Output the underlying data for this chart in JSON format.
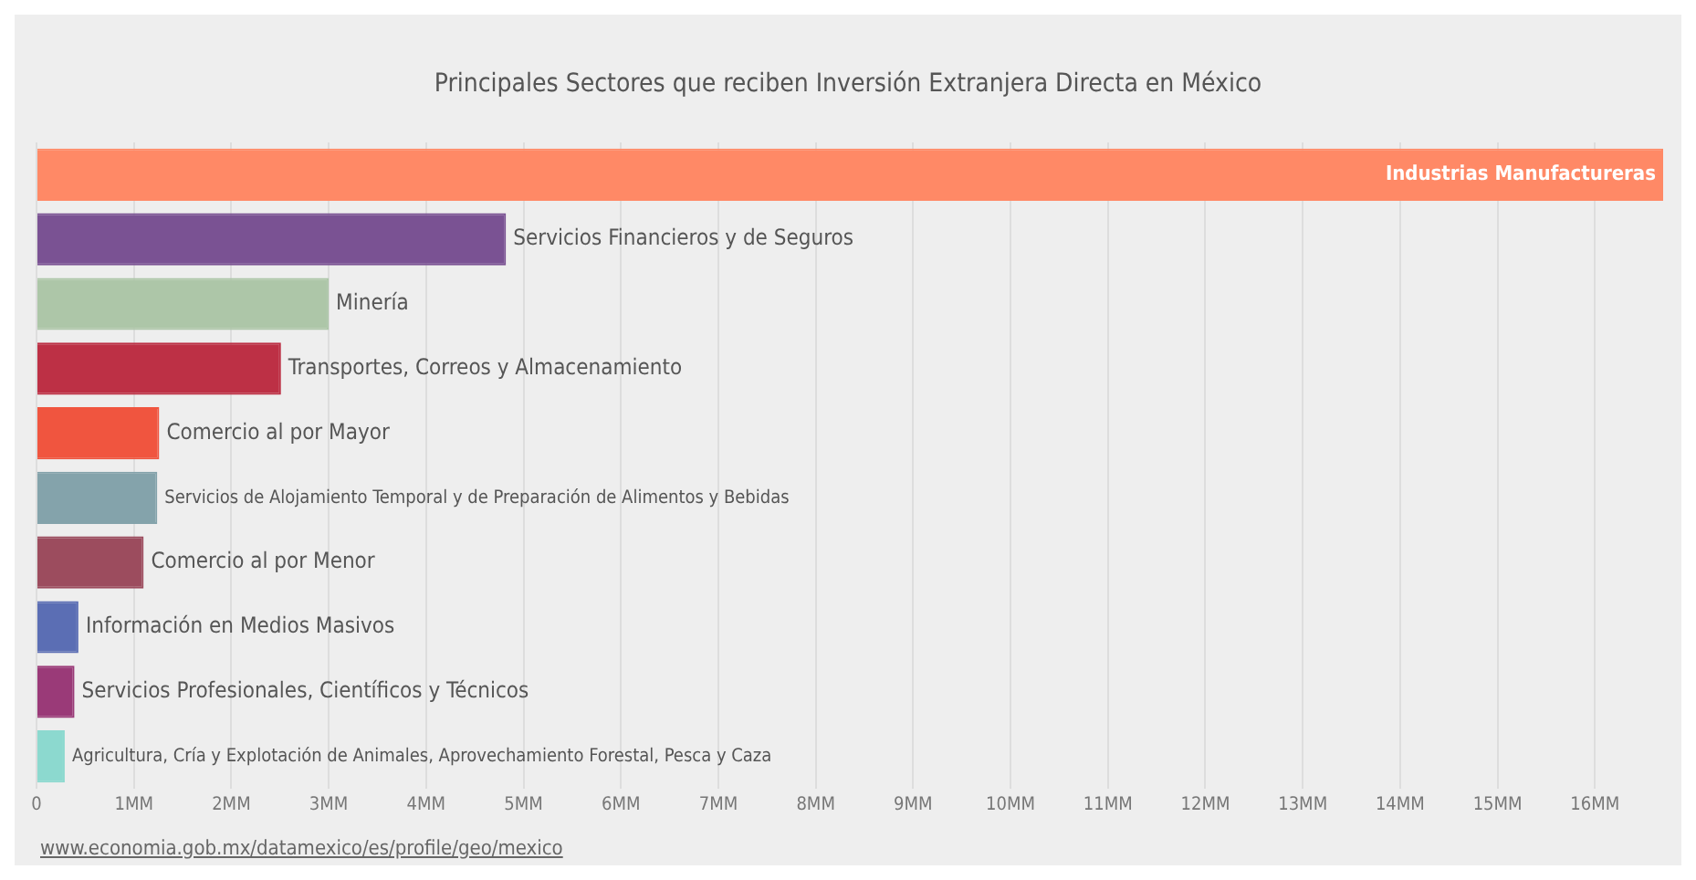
{
  "chart_data": {
    "type": "bar",
    "orientation": "horizontal",
    "title": "Principales Sectores que reciben Inversión Extranjera Directa en México",
    "categories": [
      "Industrias Manufactureras",
      "Servicios Financieros y de Seguros",
      "Minería",
      "Transportes, Correos y Almacenamiento",
      "Comercio al por Mayor",
      "Servicios de Alojamiento Temporal y de Preparación de Alimentos y Bebidas",
      "Comercio al por Menor",
      "Información en Medios Masivos",
      "Servicios Profesionales, Científicos y Técnicos",
      "Agricultura, Cría y Explotación de Animales, Aprovechamiento Forestal, Pesca y Caza"
    ],
    "values": [
      16.7,
      4.82,
      3.0,
      2.51,
      1.26,
      1.24,
      1.1,
      0.43,
      0.39,
      0.29
    ],
    "colors": [
      "#ff8966",
      "#7a5293",
      "#adc6a8",
      "#bd3045",
      "#f0553f",
      "#84a3ab",
      "#9c4c5e",
      "#5b6eb4",
      "#9a3a78",
      "#8cd9cf"
    ],
    "xlim": [
      0,
      16.7
    ],
    "xticks": [
      0,
      {
        "value": 1,
        "label": "1MM"
      },
      {
        "value": 2,
        "label": "2MM"
      },
      {
        "value": 3,
        "label": "3MM"
      },
      {
        "value": 4,
        "label": "4MM"
      },
      {
        "value": 5,
        "label": "5MM"
      },
      {
        "value": 6,
        "label": "6MM"
      },
      {
        "value": 7,
        "label": "7MM"
      },
      {
        "value": 8,
        "label": "8MM"
      },
      {
        "value": 9,
        "label": "9MM"
      },
      {
        "value": 10,
        "label": "10MM"
      },
      {
        "value": 11,
        "label": "11MM"
      },
      {
        "value": 12,
        "label": "12MM"
      },
      {
        "value": 13,
        "label": "13MM"
      },
      {
        "value": 14,
        "label": "14MM"
      },
      {
        "value": 15,
        "label": "15MM"
      },
      {
        "value": 16,
        "label": "16MM"
      }
    ],
    "grid": "x",
    "tick_labels": "x",
    "legend": false,
    "annotations": [
      "www.economia.gob.mx/datamexico/es/profile/geo/mexico"
    ]
  }
}
